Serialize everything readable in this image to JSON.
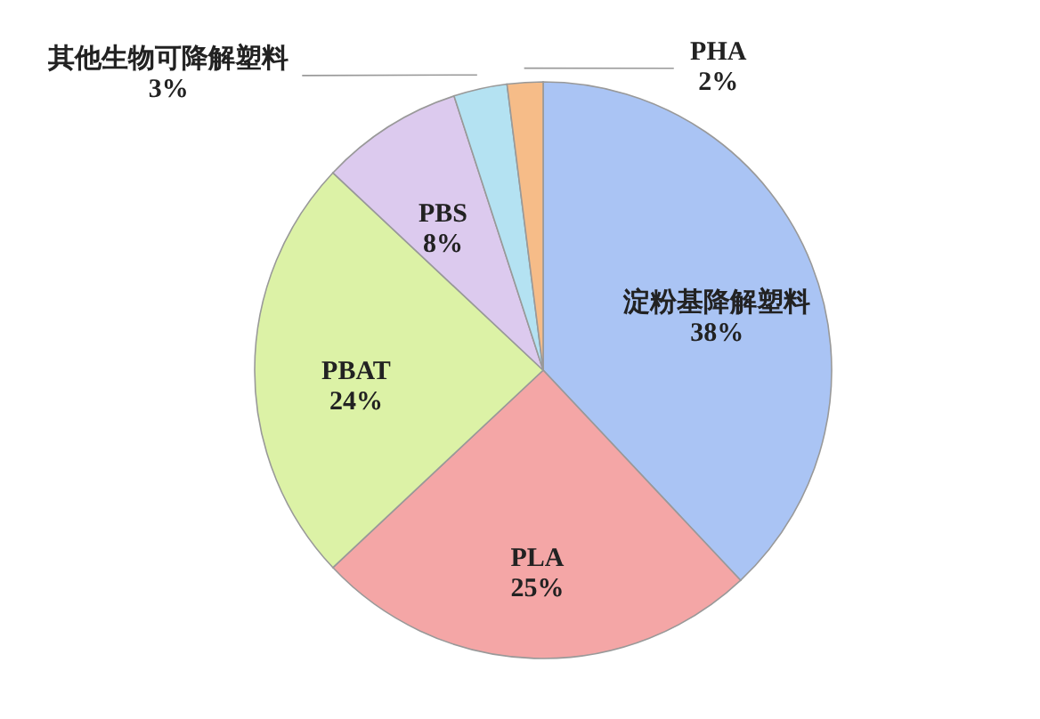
{
  "chart_data": {
    "type": "pie",
    "categories": [
      "淀粉基降解塑料",
      "PLA",
      "PBAT",
      "PBS",
      "其他生物可降解塑料",
      "PHA"
    ],
    "values": [
      38,
      25,
      24,
      8,
      3,
      2
    ],
    "value_labels": [
      "38%",
      "25%",
      "24%",
      "8%",
      "3%",
      "2%"
    ],
    "colors": [
      "#aac4f4",
      "#f4a6a6",
      "#dcf2a6",
      "#dccaee",
      "#b4e2f2",
      "#f6bc88"
    ],
    "legend": false
  }
}
